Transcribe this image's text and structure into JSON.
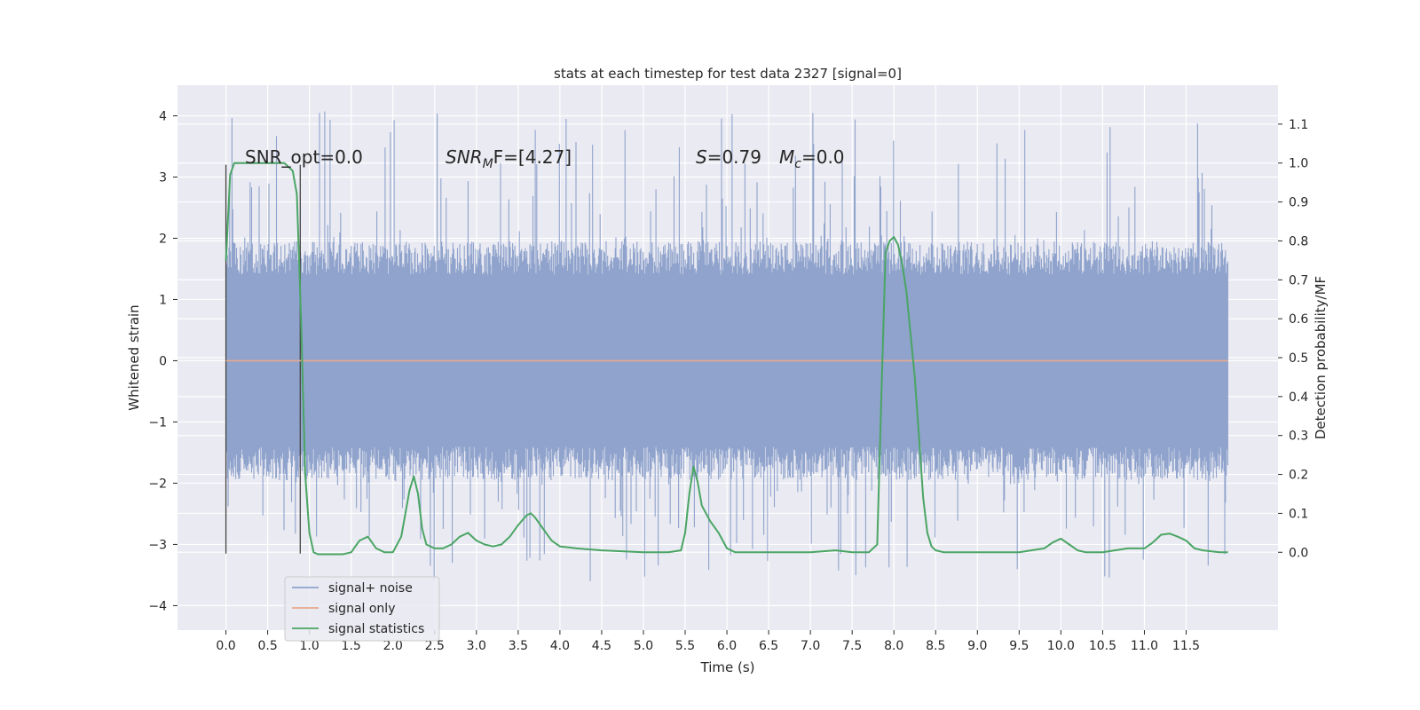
{
  "chart_data": {
    "type": "line",
    "title": "stats at each timestep for test data 2327 [signal=0]",
    "xlabel": "Time (s)",
    "ylabel_left": "Whitened strain",
    "ylabel_right": "Detection probability/MF",
    "xlim": [
      -0.58,
      12.6
    ],
    "ylim_left": [
      -4.4,
      4.5
    ],
    "ylim_right": [
      -0.2,
      1.2
    ],
    "xticks": [
      0.0,
      0.5,
      1.0,
      1.5,
      2.0,
      2.5,
      3.0,
      3.5,
      4.0,
      4.5,
      5.0,
      5.5,
      6.0,
      6.5,
      7.0,
      7.5,
      8.0,
      8.5,
      9.0,
      9.5,
      10.0,
      10.5,
      11.0,
      11.5
    ],
    "xtick_labels": [
      "0.0",
      "0.5",
      "1.0",
      "1.5",
      "2.0",
      "2.5",
      "3.0",
      "3.5",
      "4.0",
      "4.5",
      "5.0",
      "5.5",
      "6.0",
      "6.5",
      "7.0",
      "7.5",
      "8.0",
      "8.5",
      "9.0",
      "9.5",
      "10.0",
      "10.5",
      "11.0",
      "11.5"
    ],
    "yticks_left": [
      -4,
      -3,
      -2,
      -1,
      0,
      1,
      2,
      3,
      4
    ],
    "ytick_labels_left": [
      "−4",
      "−3",
      "−2",
      "−1",
      "0",
      "1",
      "2",
      "3",
      "4"
    ],
    "yticks_right": [
      0.0,
      0.1,
      0.2,
      0.3,
      0.4,
      0.5,
      0.6,
      0.7,
      0.8,
      0.9,
      1.0,
      1.1
    ],
    "ytick_labels_right": [
      "0.0",
      "0.1",
      "0.2",
      "0.3",
      "0.4",
      "0.5",
      "0.6",
      "0.7",
      "0.8",
      "0.9",
      "1.0",
      "1.1"
    ],
    "grid": true,
    "legend_placement": "lower-left",
    "annotations": {
      "snr_opt": "SNR_opt=0.0",
      "snr_mf_main": "SNR",
      "snr_mf_sub": "M",
      "snr_mf_rest": "F=[4.27]",
      "s_main": "S",
      "s_rest": "=0.79",
      "mc_main": "M",
      "mc_sub": "c",
      "mc_rest": "=0.0"
    },
    "vlines_x": [
      0.0,
      0.89
    ],
    "series": [
      {
        "name": "signal+ noise",
        "color": "#8fa3cc",
        "axis": "left",
        "x_range": [
          0.0,
          12.0
        ],
        "band_envelope": {
          "upper": 1.95,
          "lower": -1.95,
          "spike_max": 4.1,
          "spike_min": -3.6
        }
      },
      {
        "name": "signal only",
        "color": "#e8a98b",
        "axis": "left",
        "x": [
          0.0,
          12.0
        ],
        "y": [
          0.0,
          0.0
        ]
      },
      {
        "name": "signal statistics",
        "color": "#4aa564",
        "axis": "right",
        "x": [
          0.0,
          0.05,
          0.1,
          0.2,
          0.3,
          0.5,
          0.7,
          0.8,
          0.85,
          0.9,
          0.95,
          1.0,
          1.05,
          1.1,
          1.2,
          1.4,
          1.5,
          1.6,
          1.7,
          1.8,
          1.9,
          2.0,
          2.1,
          2.15,
          2.2,
          2.25,
          2.3,
          2.35,
          2.4,
          2.5,
          2.6,
          2.7,
          2.8,
          2.9,
          3.0,
          3.1,
          3.2,
          3.3,
          3.4,
          3.5,
          3.6,
          3.65,
          3.7,
          3.8,
          3.9,
          4.0,
          4.2,
          4.5,
          5.0,
          5.3,
          5.45,
          5.5,
          5.55,
          5.6,
          5.65,
          5.7,
          5.8,
          5.9,
          6.0,
          6.1,
          6.2,
          6.5,
          7.0,
          7.3,
          7.5,
          7.7,
          7.8,
          7.85,
          7.9,
          7.95,
          8.0,
          8.05,
          8.1,
          8.15,
          8.2,
          8.25,
          8.3,
          8.35,
          8.4,
          8.45,
          8.5,
          8.6,
          8.7,
          9.0,
          9.5,
          9.8,
          9.9,
          10.0,
          10.1,
          10.2,
          10.3,
          10.5,
          10.8,
          11.0,
          11.1,
          11.2,
          11.3,
          11.4,
          11.5,
          11.6,
          11.7,
          11.9,
          12.0
        ],
        "y": [
          0.75,
          0.97,
          1.0,
          1.0,
          1.0,
          1.0,
          1.0,
          0.98,
          0.92,
          0.6,
          0.2,
          0.05,
          0.0,
          -0.005,
          -0.005,
          -0.005,
          0.0,
          0.03,
          0.04,
          0.01,
          0.0,
          0.0,
          0.04,
          0.1,
          0.16,
          0.195,
          0.15,
          0.06,
          0.02,
          0.01,
          0.01,
          0.02,
          0.04,
          0.05,
          0.03,
          0.02,
          0.015,
          0.02,
          0.04,
          0.07,
          0.095,
          0.1,
          0.09,
          0.06,
          0.03,
          0.015,
          0.01,
          0.005,
          0.0,
          0.0,
          0.005,
          0.05,
          0.15,
          0.22,
          0.18,
          0.12,
          0.08,
          0.05,
          0.01,
          0.0,
          0.0,
          0.0,
          0.0,
          0.005,
          0.0,
          0.0,
          0.02,
          0.4,
          0.77,
          0.8,
          0.81,
          0.79,
          0.74,
          0.67,
          0.56,
          0.45,
          0.3,
          0.14,
          0.05,
          0.015,
          0.005,
          0.0,
          0.0,
          0.0,
          0.0,
          0.01,
          0.025,
          0.035,
          0.02,
          0.005,
          0.0,
          0.0,
          0.01,
          0.01,
          0.025,
          0.045,
          0.048,
          0.04,
          0.03,
          0.01,
          0.005,
          0.0,
          0.0
        ]
      }
    ]
  }
}
